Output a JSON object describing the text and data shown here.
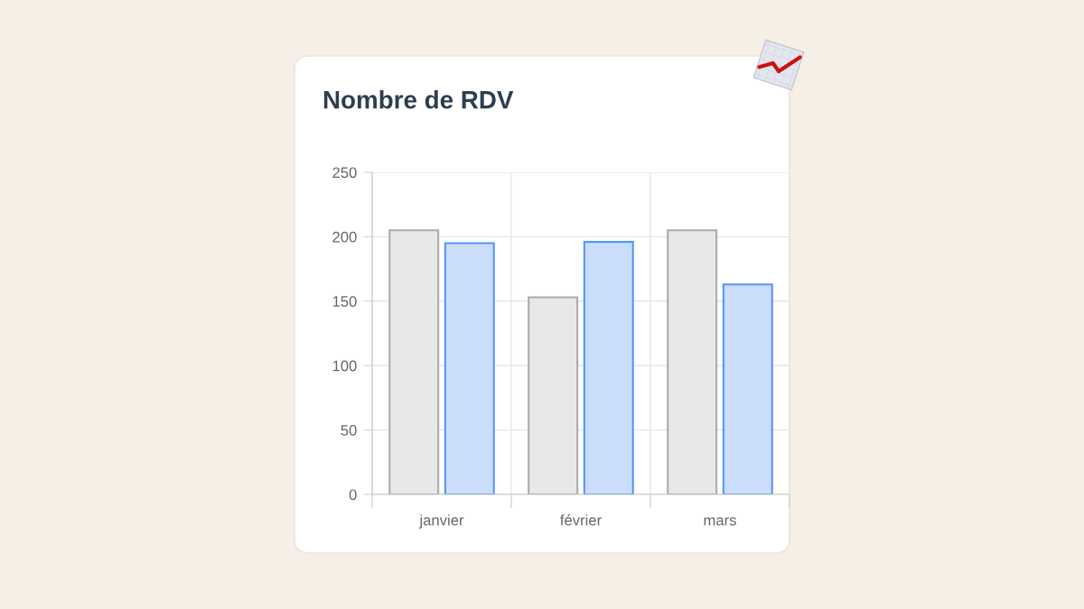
{
  "chart_data": {
    "type": "bar",
    "title": "Nombre de RDV",
    "categories": [
      "janvier",
      "février",
      "mars"
    ],
    "series": [
      {
        "color": "#e8e8e8",
        "values": [
          205,
          153,
          205
        ]
      },
      {
        "color": "#cadefc",
        "values": [
          195,
          196,
          163
        ]
      }
    ],
    "ylim": [
      0,
      250
    ],
    "yticks": [
      0,
      50,
      100,
      150,
      200,
      250
    ],
    "grid": true
  }
}
